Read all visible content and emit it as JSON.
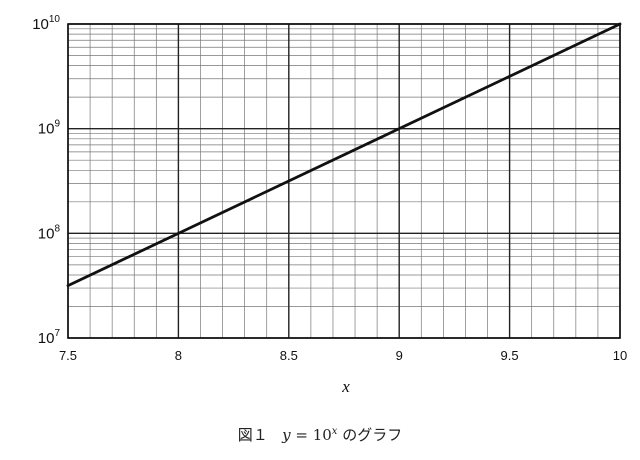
{
  "chart_data": {
    "type": "line",
    "function": "y = 10^x",
    "x": [
      7.5,
      8,
      8.5,
      9,
      9.5,
      10
    ],
    "y": [
      31622776.6,
      100000000,
      316227766,
      1000000000,
      3162277660,
      10000000000
    ],
    "xlim": [
      7.5,
      10
    ],
    "ylim": [
      10000000,
      10000000000
    ],
    "yscale": "log",
    "xlabel": "x",
    "ylabel": "",
    "x_tick_labels": [
      "7.5",
      "8",
      "8.5",
      "9",
      "9.5",
      "10"
    ],
    "y_tick_labels": [
      {
        "base": "10",
        "exp": "7"
      },
      {
        "base": "10",
        "exp": "8"
      },
      {
        "base": "10",
        "exp": "9"
      },
      {
        "base": "10",
        "exp": "10"
      }
    ],
    "grid": true,
    "line_color": "#111111"
  },
  "caption": {
    "figure": "図１",
    "eq_var": "y",
    "eq_mid": " = 10",
    "eq_exp": "x",
    "suffix": " のグラフ"
  }
}
